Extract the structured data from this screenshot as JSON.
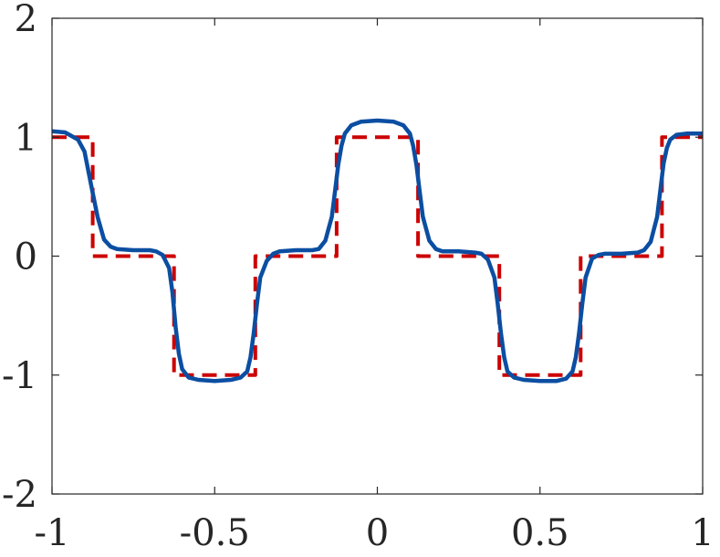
{
  "chart_data": {
    "type": "line",
    "title": "",
    "xlabel": "",
    "ylabel": "",
    "xlim": [
      -1,
      1
    ],
    "ylim": [
      -2,
      2
    ],
    "xticks": [
      -1,
      -0.5,
      0,
      0.5,
      1
    ],
    "xtick_labels": [
      "-1",
      "-0.5",
      "0",
      "0.5",
      "1"
    ],
    "yticks": [
      -2,
      -1,
      0,
      1,
      2
    ],
    "ytick_labels": [
      "-2",
      "-1",
      "0",
      "1",
      "2"
    ],
    "grid": false,
    "legend": "none",
    "series": [
      {
        "style": "dashed",
        "color": "#cc0000",
        "x": [
          -1,
          -0.875,
          -0.875,
          -0.625,
          -0.625,
          -0.375,
          -0.375,
          -0.125,
          -0.125,
          0.125,
          0.125,
          0.375,
          0.375,
          0.625,
          0.625,
          0.875,
          0.875,
          1
        ],
        "y": [
          1,
          1,
          0,
          0,
          -1,
          -1,
          0,
          0,
          1,
          1,
          0,
          0,
          -1,
          -1,
          0,
          0,
          1,
          1
        ]
      },
      {
        "style": "solid",
        "color": "#0b4ea2",
        "x": [
          -1,
          -0.96,
          -0.92,
          -0.9,
          -0.88,
          -0.86,
          -0.84,
          -0.82,
          -0.8,
          -0.75,
          -0.7,
          -0.68,
          -0.66,
          -0.64,
          -0.63,
          -0.62,
          -0.61,
          -0.6,
          -0.58,
          -0.55,
          -0.5,
          -0.45,
          -0.42,
          -0.4,
          -0.39,
          -0.38,
          -0.37,
          -0.36,
          -0.34,
          -0.32,
          -0.3,
          -0.25,
          -0.2,
          -0.18,
          -0.16,
          -0.14,
          -0.13,
          -0.12,
          -0.11,
          -0.1,
          -0.08,
          -0.05,
          0,
          0.05,
          0.08,
          0.1,
          0.11,
          0.12,
          0.13,
          0.14,
          0.16,
          0.18,
          0.2,
          0.25,
          0.3,
          0.32,
          0.34,
          0.36,
          0.37,
          0.38,
          0.39,
          0.4,
          0.42,
          0.45,
          0.5,
          0.55,
          0.58,
          0.6,
          0.61,
          0.62,
          0.63,
          0.64,
          0.66,
          0.68,
          0.7,
          0.75,
          0.8,
          0.82,
          0.84,
          0.86,
          0.87,
          0.88,
          0.89,
          0.9,
          0.92,
          0.95,
          1
        ],
        "y": [
          1.05,
          1.04,
          0.98,
          0.88,
          0.6,
          0.33,
          0.14,
          0.08,
          0.06,
          0.05,
          0.05,
          0.04,
          0.01,
          -0.1,
          -0.3,
          -0.6,
          -0.82,
          -0.95,
          -1.02,
          -1.04,
          -1.05,
          -1.04,
          -1.02,
          -0.97,
          -0.85,
          -0.65,
          -0.4,
          -0.18,
          -0.04,
          0.02,
          0.04,
          0.05,
          0.05,
          0.06,
          0.13,
          0.33,
          0.55,
          0.77,
          0.93,
          1.03,
          1.1,
          1.13,
          1.14,
          1.13,
          1.1,
          1.03,
          0.93,
          0.77,
          0.55,
          0.33,
          0.13,
          0.06,
          0.04,
          0.04,
          0.03,
          0.02,
          -0.03,
          -0.18,
          -0.4,
          -0.65,
          -0.85,
          -0.97,
          -1.02,
          -1.04,
          -1.05,
          -1.05,
          -1.03,
          -0.97,
          -0.85,
          -0.65,
          -0.4,
          -0.18,
          -0.02,
          0.01,
          0.02,
          0.02,
          0.03,
          0.05,
          0.12,
          0.33,
          0.56,
          0.78,
          0.91,
          0.98,
          1.02,
          1.03,
          1.03
        ]
      }
    ]
  }
}
